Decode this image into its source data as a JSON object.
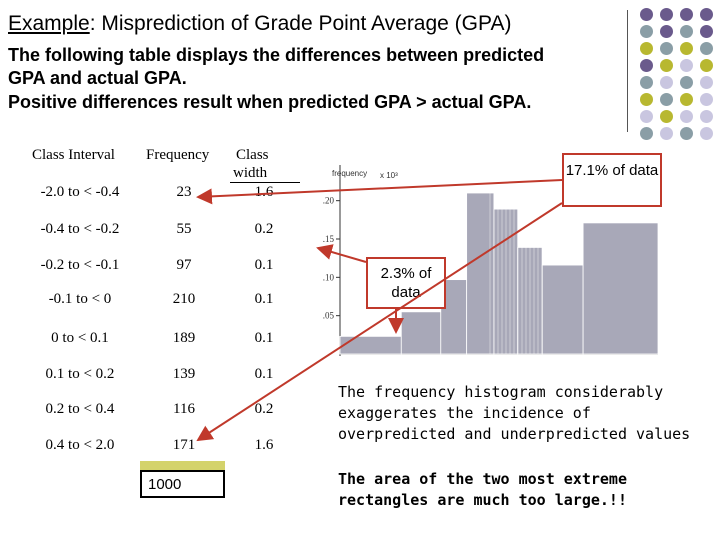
{
  "title": {
    "prefix": "Example",
    "rest": ": Misprediction of  Grade Point Average (GPA)"
  },
  "intro_lines": [
    "The following table displays the differences between predicted",
    "GPA and actual GPA.",
    "Positive differences result when predicted GPA > actual GPA."
  ],
  "table": {
    "headers": {
      "interval": "Class Interval",
      "frequency": "Frequency",
      "width_line1": "Class",
      "width_line2": "width"
    },
    "rows": [
      {
        "interval": "-2.0 to < -0.4",
        "frequency": "23",
        "width": "1.6"
      },
      {
        "interval": "-0.4 to < -0.2",
        "frequency": "55",
        "width": "0.2"
      },
      {
        "interval": "-0.2 to < -0.1",
        "frequency": "97",
        "width": "0.1"
      },
      {
        "interval": "-0.1 to < 0",
        "frequency": "210",
        "width": "0.1"
      },
      {
        "interval": "0 to < 0.1",
        "frequency": "189",
        "width": "0.1"
      },
      {
        "interval": "0.1 to < 0.2",
        "frequency": "139",
        "width": "0.1"
      },
      {
        "interval": "0.2 to < 0.4",
        "frequency": "116",
        "width": "0.2"
      },
      {
        "interval": "0.4 to < 2.0",
        "frequency": "171",
        "width": "1.6"
      }
    ],
    "total": "1000"
  },
  "chart_data": {
    "type": "bar",
    "ylabel": "frequency",
    "yunit": "x 10³",
    "yticks": [
      ".05",
      ".10",
      ".15",
      ".20"
    ],
    "ylim": [
      0,
      0.24
    ],
    "categories": [
      "-2.0 to < -0.4",
      "-0.4 to < -0.2",
      "-0.2 to < -0.1",
      "-0.1 to < 0",
      "0 to < 0.1",
      "0.1 to < 0.2",
      "0.2 to < 0.4",
      "0.4 to < 2.0"
    ],
    "widths": [
      1.6,
      0.2,
      0.1,
      0.1,
      0.1,
      0.1,
      0.2,
      1.6
    ],
    "values": [
      0.023,
      0.055,
      0.097,
      0.21,
      0.189,
      0.139,
      0.116,
      0.171
    ]
  },
  "callouts": {
    "right": "17.1% of data",
    "left": "2.3% of data"
  },
  "notes": {
    "note1_lines": [
      "The frequency histogram considerably",
      "exaggerates the incidence of",
      "overpredicted and underpredicted values"
    ],
    "note2_lines": [
      "The area of the two most extreme",
      "rectangles are much too large.!!"
    ]
  },
  "colors": {
    "purple": "#6a5a8c",
    "gray": "#8a9ea6",
    "olive": "#b8b830",
    "lavender": "#c9c6e0",
    "arrow": "#c0392b",
    "bar": "#a8a8b8"
  }
}
